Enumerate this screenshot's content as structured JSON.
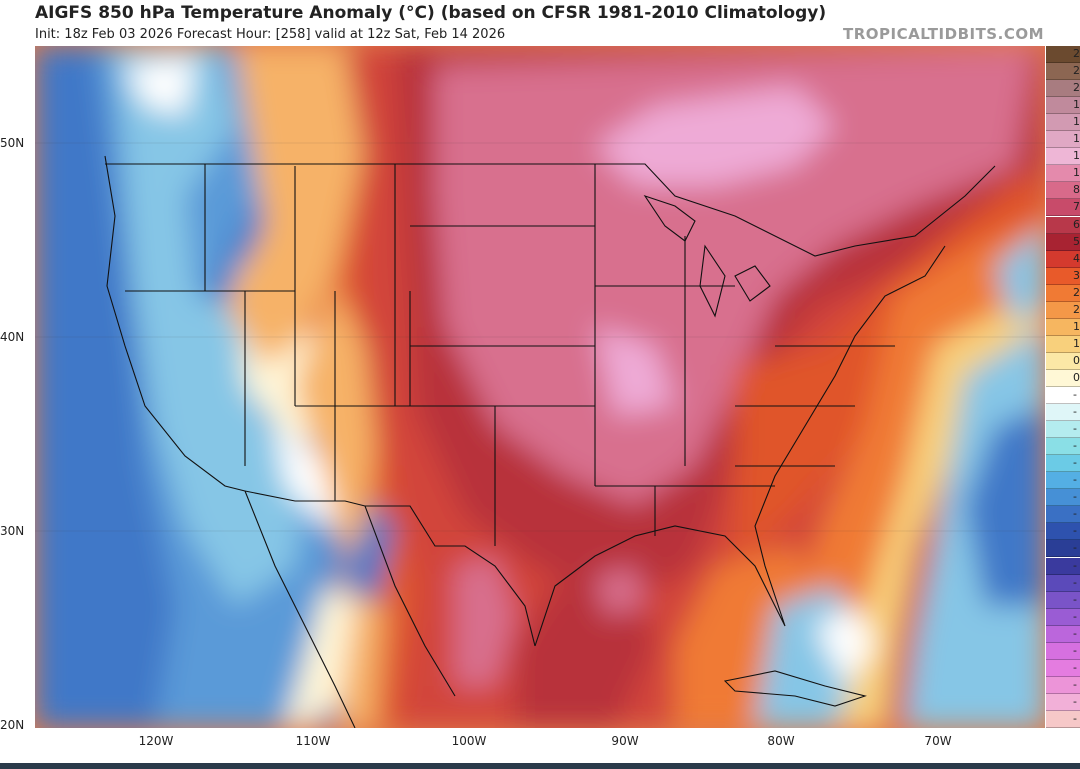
{
  "header": {
    "title": "AIGFS 850 hPa Temperature Anomaly (°C) (based on CFSR 1981-2010 Climatology)",
    "subtitle": "Init: 18z Feb 03 2026   Forecast Hour: [258]   valid at 12z Sat, Feb 14 2026",
    "brand": "TROPICALTIDBITS.COM"
  },
  "axes": {
    "lat_labels": [
      "50N",
      "40N",
      "30N",
      "20N"
    ],
    "lon_labels": [
      "120W",
      "110W",
      "100W",
      "90W",
      "80W",
      "70W"
    ]
  },
  "legend": {
    "colors": [
      "#6b4a2f",
      "#8c6652",
      "#a87c80",
      "#c08a9c",
      "#d29ab2",
      "#e0a8c4",
      "#eeb6d6",
      "#e48aac",
      "#d86a8a",
      "#c84b6a",
      "#b8384a",
      "#a82332",
      "#d43a2e",
      "#e85a2a",
      "#f07a34",
      "#f49848",
      "#f6b660",
      "#f8d07c",
      "#fbe8a6",
      "#fff8d6",
      "#ffffff",
      "#dff6f8",
      "#b4ecef",
      "#8adfe6",
      "#6bcbe6",
      "#54afe4",
      "#4690d6",
      "#3a70c4",
      "#2e52ae",
      "#2a3e96",
      "#3a3a9e",
      "#5b4aba",
      "#7a54c8",
      "#9a5cd4",
      "#bb66dc",
      "#d670e0",
      "#e47ce0",
      "#ec94d8",
      "#f2b0d8",
      "#f6c8c8"
    ],
    "labels": [
      "2",
      "2",
      "2",
      "1",
      "1",
      "1",
      "1",
      "1",
      "8",
      "7",
      "6",
      "5",
      "4",
      "3",
      "2",
      "2",
      "1",
      "1",
      "0",
      "0",
      "-",
      "-",
      "-",
      "-",
      "-",
      "-",
      "-",
      "-",
      "-",
      "-",
      "-",
      "-",
      "-",
      "-",
      "-",
      "-",
      "-",
      "-",
      "-",
      "-"
    ]
  },
  "map": {
    "colors": {
      "ocean_cold": "#3f78c8",
      "cold": "#5a9ad8",
      "cool": "#86c6e6",
      "neutral": "#fff6d8",
      "warm": "#f6b268",
      "hot": "#e0552a",
      "very_hot": "#b8303a",
      "extreme": "#d8708e",
      "peak": "#eeaad6"
    }
  }
}
